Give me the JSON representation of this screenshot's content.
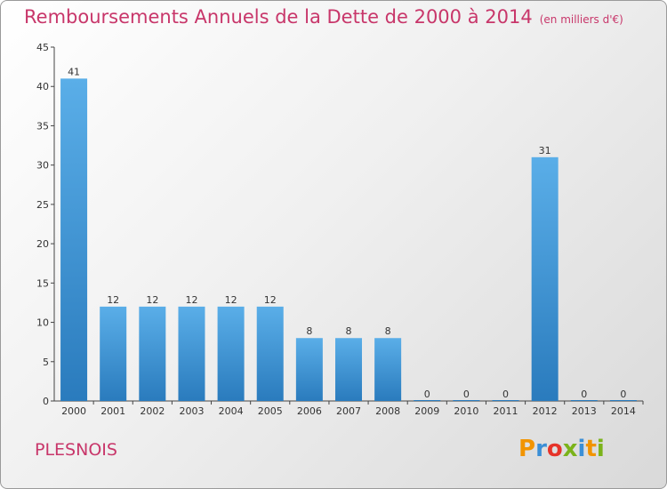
{
  "header": {
    "title": "Remboursements Annuels de la Dette de 2000 à 2014",
    "unit": "(en milliers d'€)"
  },
  "footer": {
    "commune": "PLESNOIS",
    "logo": "Proxiti",
    "logo_colors": [
      "#f29400",
      "#3b8fd6",
      "#e63329",
      "#7bb31a",
      "#3b8fd6",
      "#f29400",
      "#7bb31a"
    ]
  },
  "colors": {
    "title": "#c8366a",
    "bar_light": "#5aaee8",
    "bar_dark": "#2a7bbd"
  },
  "chart_data": {
    "type": "bar",
    "title": "Remboursements Annuels de la Dette de 2000 à 2014",
    "subtitle": "(en milliers d'€)",
    "categories": [
      "2000",
      "2001",
      "2002",
      "2003",
      "2004",
      "2005",
      "2006",
      "2007",
      "2008",
      "2009",
      "2010",
      "2011",
      "2012",
      "2013",
      "2014"
    ],
    "values": [
      41,
      12,
      12,
      12,
      12,
      12,
      8,
      8,
      8,
      0,
      0,
      0,
      31,
      0,
      0
    ],
    "ylim": [
      0,
      45
    ],
    "yticks": [
      0,
      5,
      10,
      15,
      20,
      25,
      30,
      35,
      40,
      45
    ],
    "grid": false,
    "data_labels": true
  }
}
